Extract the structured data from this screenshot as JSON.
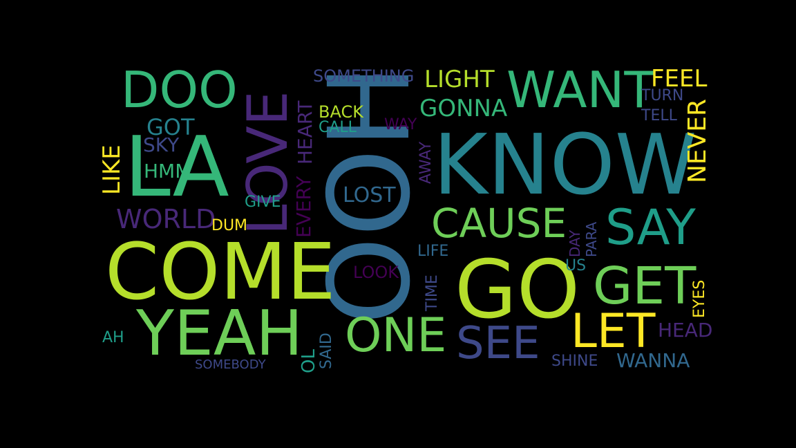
{
  "words": {
    "ooh": "OOH",
    "know": "KNOW",
    "come": "COME",
    "go": "GO",
    "la": "LA",
    "yeah": "YEAH",
    "love": "LOVE",
    "want": "WANT",
    "doo": "DOO",
    "get": "GET",
    "say": "SAY",
    "let": "LET",
    "one": "ONE",
    "see": "SEE",
    "cause": "CAUSE",
    "never": "NEVER",
    "light": "LIGHT",
    "gonna": "GONNA",
    "feel": "FEEL",
    "something": "SOMETHING",
    "heart": "HEART",
    "every": "EVERY",
    "like": "LIKE",
    "world": "WORLD",
    "got": "GOT",
    "sky": "SKY",
    "hmm": "HMM",
    "give": "GIVE",
    "dum": "DUM",
    "lost": "LOST",
    "back": "BACK",
    "call": "CALL",
    "way": "WAY",
    "away": "AWAY",
    "turn": "TURN",
    "tell": "TELL",
    "day": "DAY",
    "para": "PARA",
    "us": "US",
    "life": "LIFE",
    "look": "LOOK",
    "time": "TIME",
    "eyes": "EYES",
    "head": "HEAD",
    "ah": "AH",
    "somebody": "SOMEBODY",
    "ol": "OL",
    "said": "SAID",
    "shine": "SHINE",
    "wanna": "WANNA"
  },
  "colors": {
    "background": "#000000",
    "palette": [
      "#fde725",
      "#b5de2b",
      "#6ece58",
      "#35b779",
      "#1f9e89",
      "#26828e",
      "#31688e",
      "#3e4989",
      "#482878",
      "#440154"
    ]
  }
}
